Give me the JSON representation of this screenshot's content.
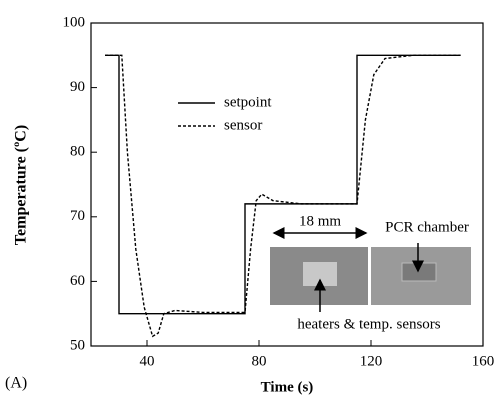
{
  "chart_data": {
    "type": "line",
    "x_label": "Time (s)",
    "y_label": "Temperature (ºC)",
    "panel_label": "(A)",
    "xlim": [
      20,
      160
    ],
    "xticks": [
      40,
      80,
      120,
      160
    ],
    "ylim": [
      50,
      100
    ],
    "yticks": [
      50,
      60,
      70,
      80,
      90,
      100
    ],
    "series": [
      {
        "name": "setpoint",
        "color": "#000000",
        "linestyle": "solid",
        "x": [
          25,
          30,
          30,
          75,
          75,
          115,
          115,
          152
        ],
        "values": [
          95,
          95,
          55,
          55,
          72,
          72,
          95,
          95
        ]
      },
      {
        "name": "sensor",
        "color": "#000000",
        "linestyle": "dashed",
        "x": [
          25,
          31,
          33,
          36,
          39,
          42,
          44,
          46,
          50,
          60,
          75,
          77,
          79,
          81,
          85,
          95,
          115,
          118,
          121,
          125,
          135,
          152
        ],
        "values": [
          95,
          95,
          80,
          65,
          56,
          51.5,
          52,
          55,
          55.5,
          55.2,
          55.2,
          65,
          72.5,
          73.5,
          72.5,
          72,
          72,
          85,
          92,
          94.5,
          95,
          95
        ]
      }
    ],
    "annotations": [
      "18 mm",
      "PCR chamber",
      "heaters & temp. sensors"
    ]
  }
}
